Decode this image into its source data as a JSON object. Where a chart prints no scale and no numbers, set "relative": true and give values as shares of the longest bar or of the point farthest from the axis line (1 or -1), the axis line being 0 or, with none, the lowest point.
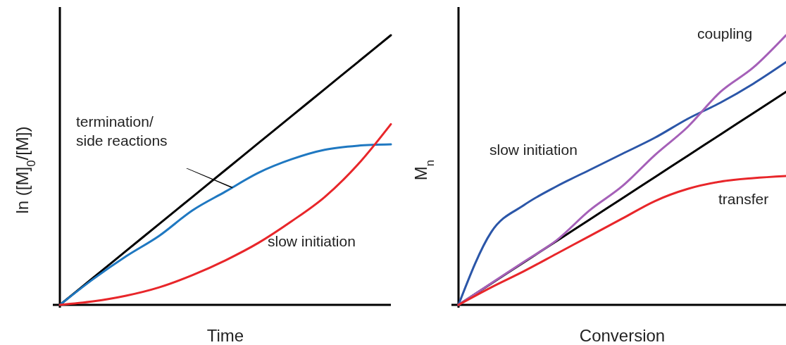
{
  "chart_data": [
    {
      "type": "line",
      "relative": true,
      "xlabel": "Time",
      "ylabel": "ln ([M]$_{0}$/[M])",
      "annotations": [
        "termination/ side reactions"
      ],
      "categories": [
        null,
        null,
        null,
        null,
        null,
        null,
        null,
        null,
        null,
        null,
        null
      ],
      "series": [
        {
          "color": "#000000",
          "values": [
            0,
            0.1,
            0.2,
            0.3,
            0.4,
            0.5,
            0.6,
            0.7,
            0.8,
            0.9,
            1
          ]
        },
        {
          "color": "#1f78c1",
          "values": [
            0,
            0.095,
            0.18,
            0.256,
            0.35,
            0.42,
            0.49,
            0.54,
            0.575,
            0.59,
            0.595
          ]
        },
        {
          "name": "slow initiation",
          "color": "#e8262a",
          "values": [
            0,
            0.013,
            0.034,
            0.065,
            0.11,
            0.165,
            0.23,
            0.31,
            0.4,
            0.52,
            0.67
          ]
        }
      ]
    },
    {
      "type": "line",
      "relative": true,
      "xlabel": "Conversion",
      "ylabel": "M$_{n}$",
      "categories": [
        null,
        null,
        null,
        null,
        null,
        null,
        null,
        null,
        null,
        null,
        null
      ],
      "series": [
        {
          "color": "#000000",
          "values": [
            0,
            0.079,
            0.158,
            0.237,
            0.316,
            0.395,
            0.474,
            0.553,
            0.632,
            0.711,
            0.79
          ]
        },
        {
          "name": "slow initiation",
          "color": "#2b56a8",
          "values": [
            0,
            0.27,
            0.37,
            0.44,
            0.5,
            0.56,
            0.62,
            0.69,
            0.75,
            0.82,
            0.9
          ]
        },
        {
          "name": "coupling",
          "color": "#a560b8",
          "values": [
            0,
            0.08,
            0.16,
            0.24,
            0.35,
            0.44,
            0.556,
            0.66,
            0.79,
            0.88,
            1
          ]
        },
        {
          "name": "transfer",
          "color": "#e8262a",
          "values": [
            0,
            0.065,
            0.125,
            0.19,
            0.255,
            0.32,
            0.385,
            0.43,
            0.457,
            0.47,
            0.478
          ]
        }
      ]
    }
  ]
}
